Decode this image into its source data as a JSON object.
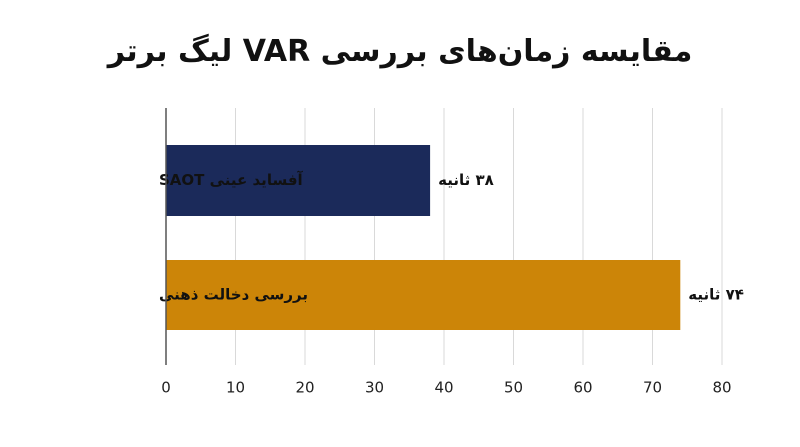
{
  "chart_data": {
    "type": "bar",
    "orientation": "horizontal",
    "title": "مقایسه زمان‌های بررسی VAR لیگ برتر",
    "categories": [
      "آفساید عینی SAOT",
      "بررسی دخالت ذهنی"
    ],
    "values": [
      38,
      74
    ],
    "value_labels": [
      "۳۸ ثانیه",
      "۷۴ ثانیه"
    ],
    "colors": [
      "#1b2a5a",
      "#cc8508"
    ],
    "xlim": [
      0,
      80
    ],
    "xticks": [
      0,
      10,
      20,
      30,
      40,
      50,
      60,
      70,
      80
    ],
    "grid": true
  }
}
